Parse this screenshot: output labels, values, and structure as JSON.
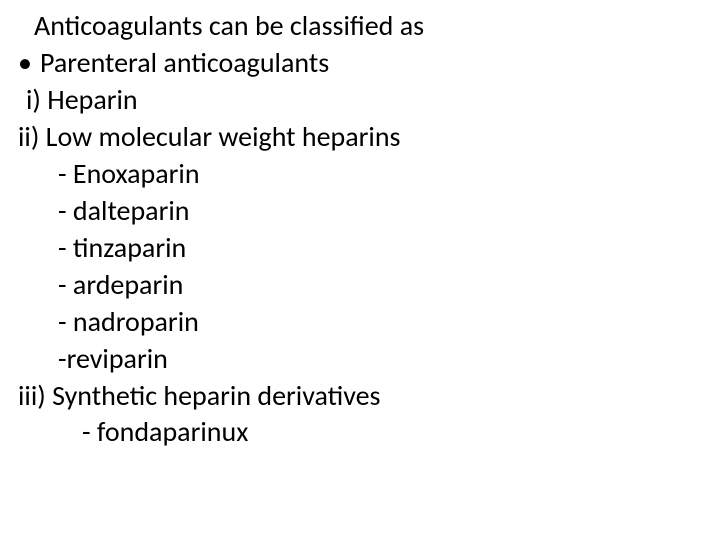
{
  "slide": {
    "intro": "Anticoagulants can be classified as",
    "bullet_mark": "•",
    "bullet1": "Parenteral anticoagulants",
    "roman_i": "i) Heparin",
    "roman_ii": "ii) Low molecular weight heparins",
    "dash1": "- Enoxaparin",
    "dash2": "- dalteparin",
    "dash3": "- tinzaparin",
    "dash4": "- ardeparin",
    "dash5": "- nadroparin",
    "dash6": "-reviparin",
    "roman_iii": "iii) Synthetic heparin derivatives",
    "dash7": "- fondaparinux"
  },
  "style": {
    "background_color": "#ffffff",
    "text_color": "#000000",
    "font_family": "Calibri",
    "font_size_pt": 21,
    "line_height": 1.32
  }
}
